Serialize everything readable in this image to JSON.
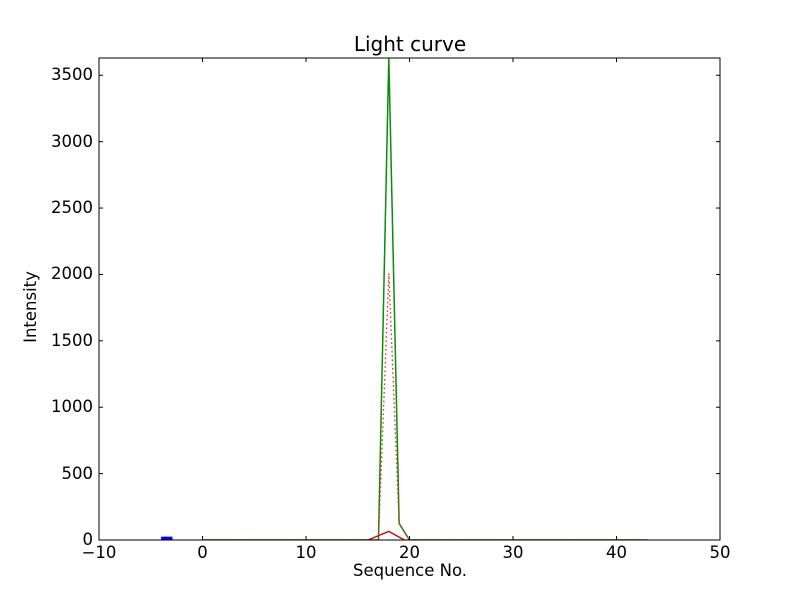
{
  "figure": {
    "background": "#ffffff",
    "frame_color": "#000000"
  },
  "chart_data": {
    "type": "line",
    "title": "Light curve",
    "xlabel": "Sequence No.",
    "ylabel": "Intensity",
    "xlim": [
      -10,
      50
    ],
    "ylim": [
      0,
      3630
    ],
    "grid": false,
    "legend": null,
    "xticks": {
      "values": [
        -10,
        0,
        10,
        20,
        30,
        40,
        50
      ],
      "labels": [
        "−10",
        "0",
        "10",
        "20",
        "30",
        "40",
        "50"
      ]
    },
    "yticks": {
      "values": [
        0,
        500,
        1000,
        1500,
        2000,
        2500,
        3000,
        3500
      ],
      "labels": [
        "0",
        "500",
        "1000",
        "1500",
        "2000",
        "2500",
        "3000",
        "3500"
      ]
    },
    "series": [
      {
        "name": "green-solid-curve",
        "color": "#0a8c0a",
        "style": "solid",
        "linewidth": 1.5,
        "points": [
          [
            0,
            0
          ],
          [
            16,
            0
          ],
          [
            17,
            0
          ],
          [
            18,
            3630
          ],
          [
            19,
            125
          ],
          [
            20,
            0
          ],
          [
            43,
            0
          ]
        ]
      },
      {
        "name": "red-solid-curve",
        "color": "#c00000",
        "style": "solid",
        "linewidth": 1.3,
        "points": [
          [
            0,
            0
          ],
          [
            16,
            0
          ],
          [
            18,
            65
          ],
          [
            19.5,
            0
          ],
          [
            43,
            0
          ]
        ]
      },
      {
        "name": "red-dotted-curve",
        "color": "#ff2222",
        "style": "dotted",
        "linewidth": 1.3,
        "points": [
          [
            0,
            0
          ],
          [
            17,
            0
          ],
          [
            18,
            2008
          ],
          [
            19,
            120
          ],
          [
            20,
            0
          ],
          [
            43,
            0
          ]
        ]
      },
      {
        "name": "blue-segment",
        "color": "#0000ff",
        "style": "solid",
        "linewidth": 3.5,
        "points": [
          [
            -4,
            12
          ],
          [
            -2.9,
            12
          ]
        ]
      }
    ]
  }
}
